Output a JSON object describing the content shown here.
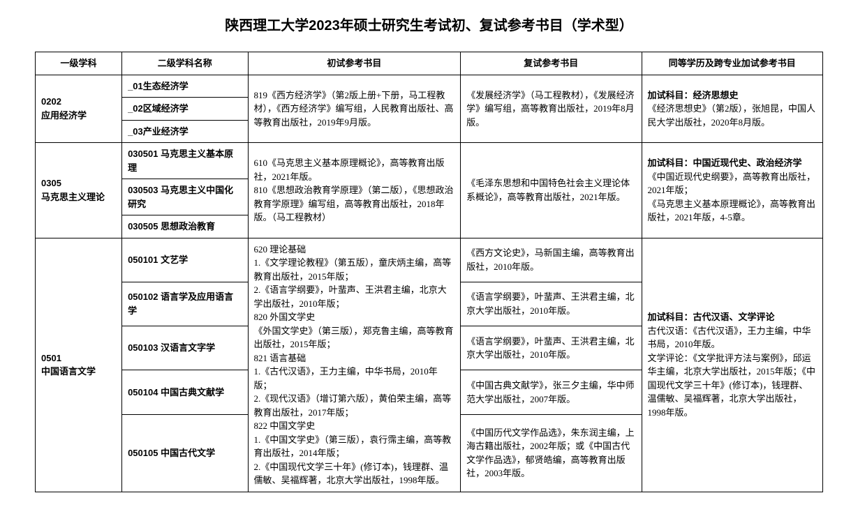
{
  "title": "陕西理工大学2023年硕士研究生考试初、复试参考书目（学术型）",
  "headers": {
    "col1": "一级学科",
    "col2": "二级学科名称",
    "col3": "初试参考书目",
    "col4": "复试参考书目",
    "col5": "同等学历及跨专业加试参考书目"
  },
  "row1": {
    "level1_code": "0202",
    "level1_name": "应用经济学",
    "sub1": "_01生态经济学",
    "sub2": "_02区域经济学",
    "sub3": "_03产业经济学",
    "prelim": "819《西方经济学》（第2版上册+下册，马工程教材），《西方经济学》编写组，人民教育出版社、高等教育出版社，2019年9月版。",
    "retest": "《发展经济学》（马工程教材），《发展经济学》编写组，高等教育出版社，2019年8月版。",
    "extra_label": "加试科目：经济思想史",
    "extra_body": "《经济思想史》（第2版），张旭昆，中国人民大学出版社，2020年8月版。"
  },
  "row2": {
    "level1_code": "0305",
    "level1_name": "马克思主义理论",
    "sub1": "030501 马克思主义基本原理",
    "sub2": "030503 马克思主义中国化研究",
    "sub3": "030505 思想政治教育",
    "prelim": "610《马克思主义基本原理概论》，高等教育出版社，2021年版。\n810《思想政治教育学原理》（第二版），《思想政治教育学原理》编写组，高等教育出版社，2018年版。（马工程教材）",
    "retest": "《毛泽东思想和中国特色社会主义理论体系概论》，高等教育出版社，2021年版。",
    "extra_label": "加试科目：中国近现代史、政治经济学",
    "extra_body": "《中国近现代史纲要》，高等教育出版社，2021年版；\n《马克思主义基本原理概论》，高等教育出版社，2021年版，4-5章。"
  },
  "row3": {
    "level1_code": "0501",
    "level1_name": "中国语言文学",
    "sub1": "050101 文艺学",
    "sub2": "050102 语言学及应用语言学",
    "sub3": "050103 汉语言文字学",
    "sub4": "050104 中国古典文献学",
    "sub5": "050105 中国古代文学",
    "prelim": "620 理论基础\n1.《文学理论教程》（第五版），童庆炳主编，高等教育出版社，2015年版；\n2.《语言学纲要》，叶蜚声、王洪君主编，北京大学出版社，2010年版；\n820 外国文学史\n《外国文学史》（第三版），郑克鲁主编，高等教育出版社，2015年版；\n821 语言基础\n1.《古代汉语》，王力主编，中华书局，2010年版；\n2.《现代汉语》（增订第六版），黄伯荣主编，高等教育出版社，2017年版；\n822 中国文学史\n1.《中国文学史》（第三版），袁行霈主编，高等教育出版社，2014年版；\n2.《中国现代文学三十年》(修订本)，钱理群、温儒敏、吴福辉著，北京大学出版社，1998年版。",
    "retest1": "《西方文论史》，马新国主编，高等教育出版社，2010年版。",
    "retest2": "《语言学纲要》，叶蜚声、王洪君主编，北京大学出版社，2010年版。",
    "retest3": "《语言学纲要》，叶蜚声、王洪君主编，北京大学出版社，2010年版。",
    "retest4": "《中国古典文献学》，张三夕主编，华中师范大学出版社，2007年版。",
    "retest5": "《中国历代文学作品选》，朱东润主编，上海古籍出版社，2002年版；或《中国古代文学作品选》，郁贤皓编，高等教育出版社，2003年版。",
    "extra_label": "加试科目：古代汉语、文学评论",
    "extra_body": "古代汉语：《古代汉语》，王力主编，中华书局，2010年版。\n文学评论：《文学批评方法与案例》，邱运华主编，北京大学出版社，2015年版；《中国现代文学三十年》(修订本)，钱理群、温儒敏、吴福辉著，北京大学出版社，1998年版。"
  }
}
